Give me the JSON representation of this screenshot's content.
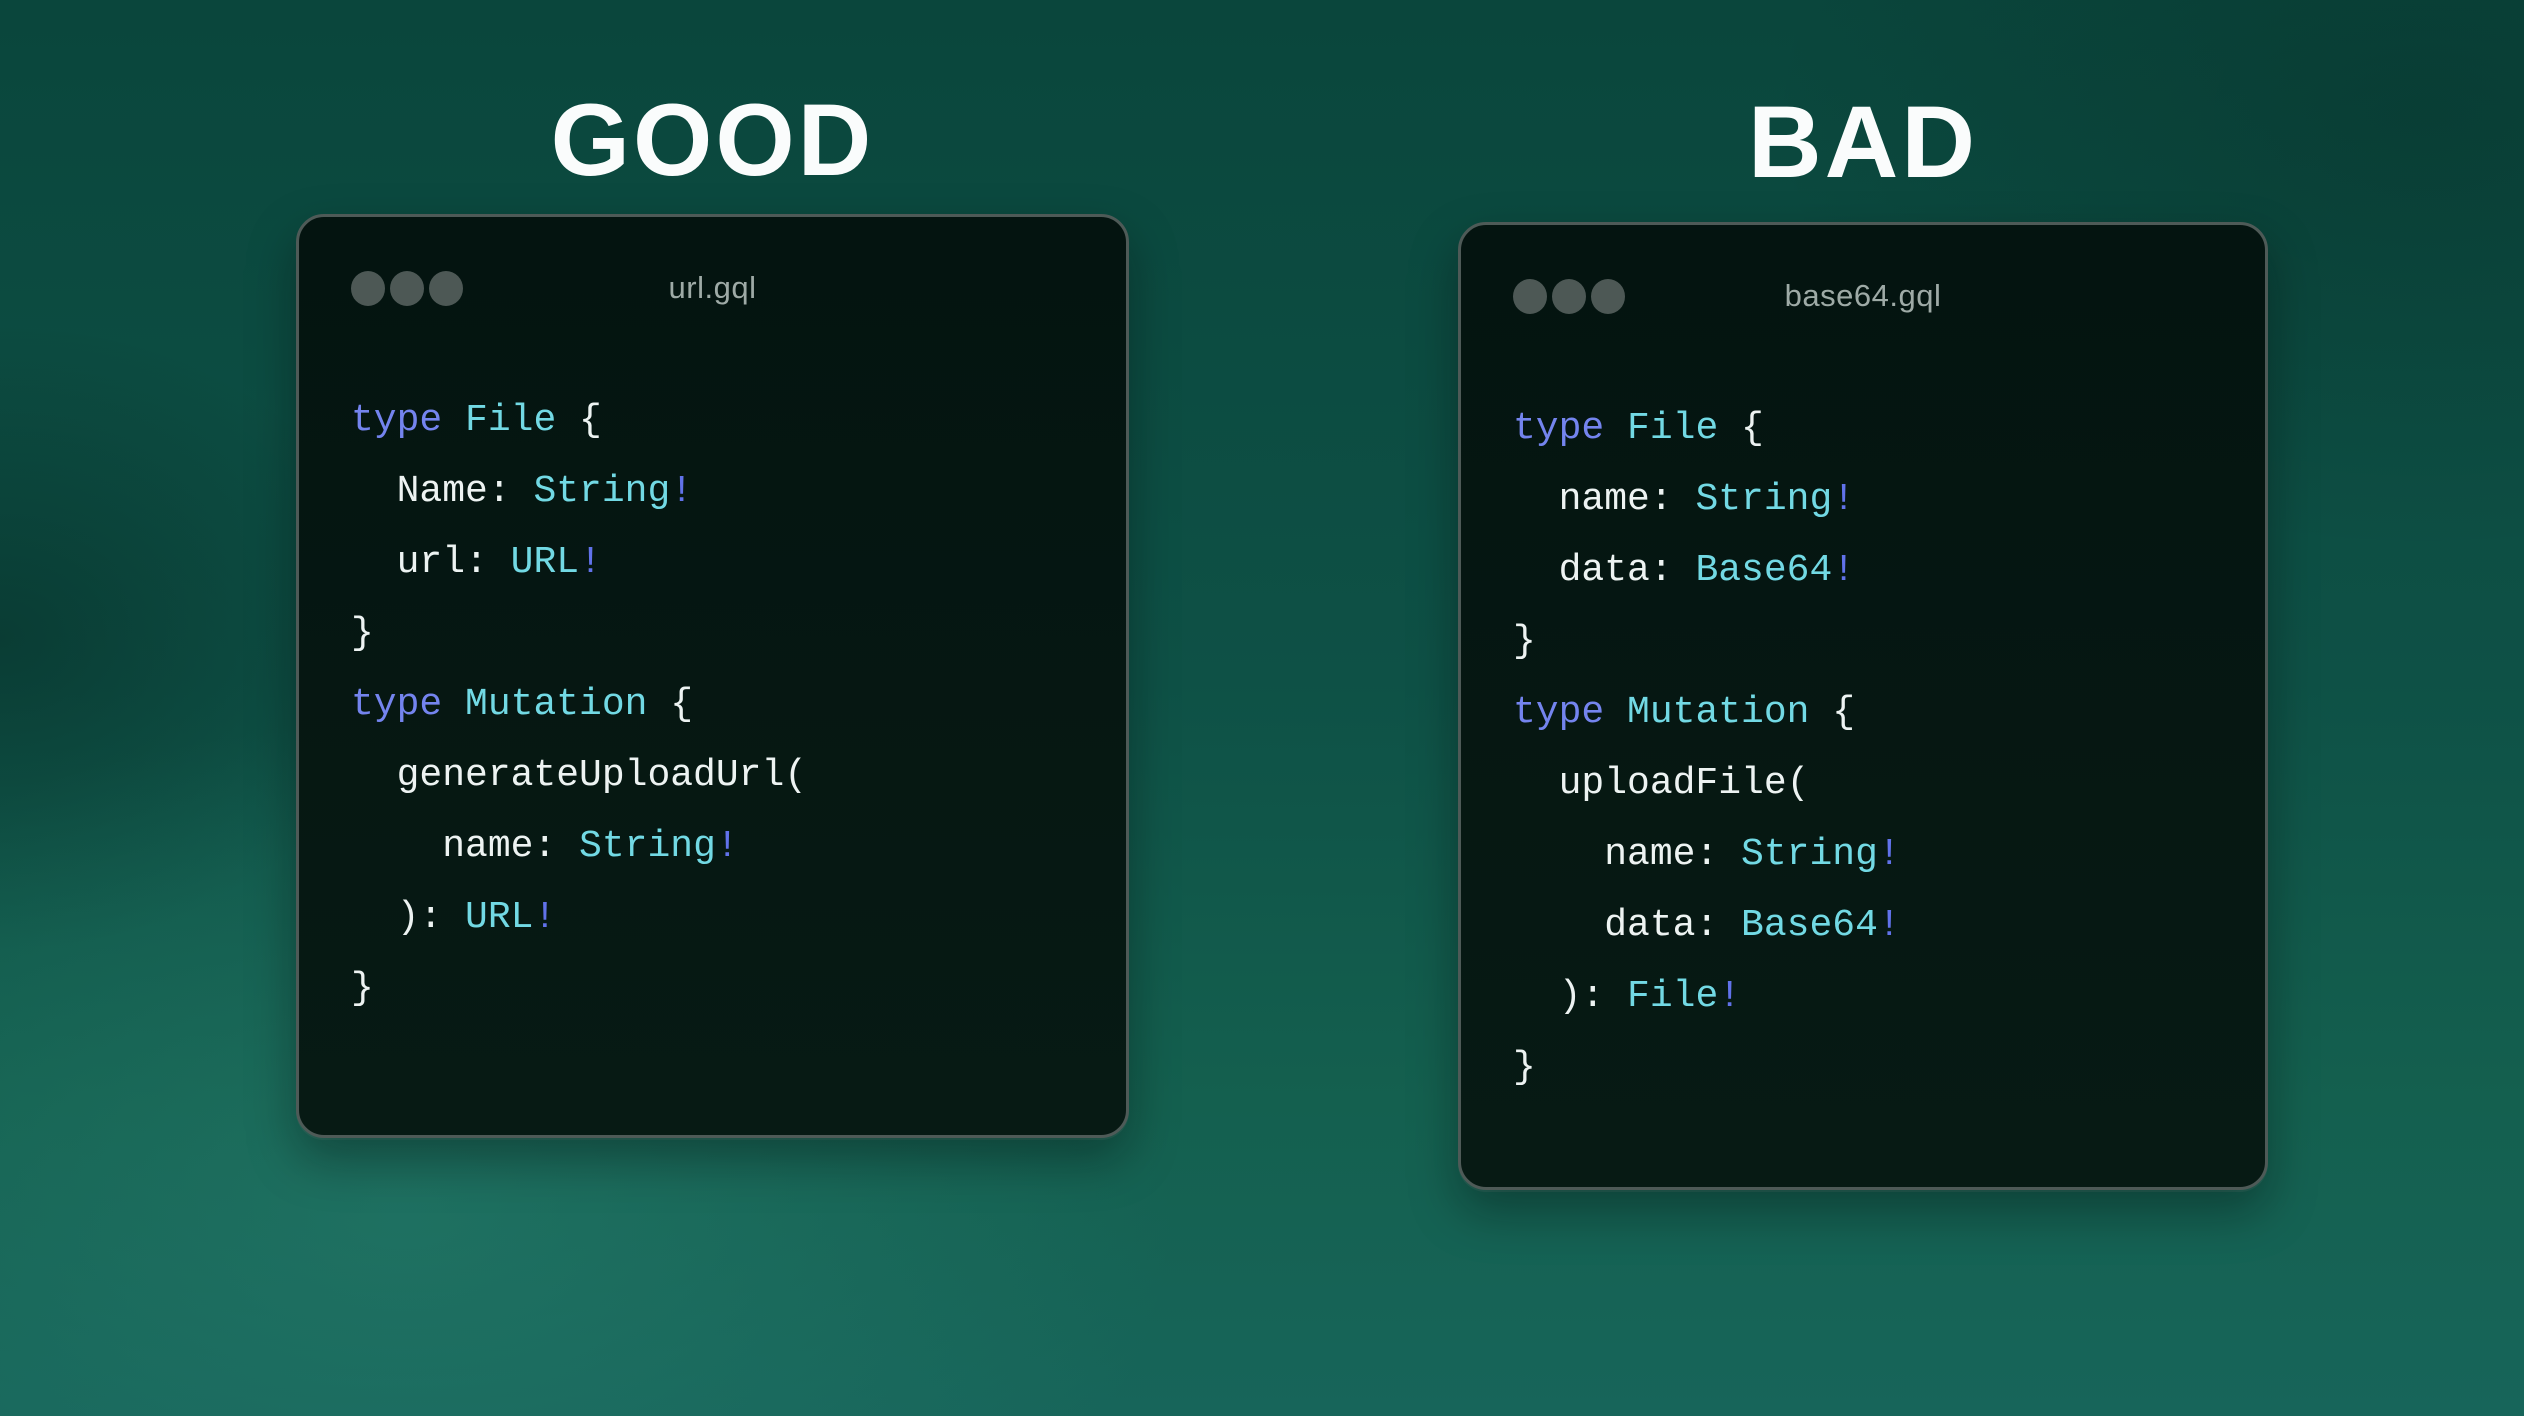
{
  "page": {
    "background_top": "#0a463c",
    "background_bottom": "#17655a"
  },
  "colors": {
    "keyword": "#7484ee",
    "typename": "#72d9e4",
    "plain": "#edf3f2",
    "bang": "#6172ea",
    "window_bg_top": "#041410",
    "window_bg_bottom": "#071a14",
    "window_border": "#4e5a57",
    "title_text": "#9eaaa6",
    "dot": "#4d5855",
    "heading_text": "#fafcfc"
  },
  "panels": [
    {
      "id": "good",
      "heading": "GOOD",
      "filename": "url.gql",
      "code": [
        [
          [
            "kw",
            "type"
          ],
          [
            "pl",
            " "
          ],
          [
            "ty",
            "File"
          ],
          [
            "pl",
            " {"
          ]
        ],
        [
          [
            "pl",
            "  Name: "
          ],
          [
            "ty",
            "String"
          ],
          [
            "bang",
            "!"
          ]
        ],
        [
          [
            "pl",
            "  url: "
          ],
          [
            "ty",
            "URL"
          ],
          [
            "bang",
            "!"
          ]
        ],
        [
          [
            "pl",
            "}"
          ]
        ],
        [
          [
            "kw",
            "type"
          ],
          [
            "pl",
            " "
          ],
          [
            "ty",
            "Mutation"
          ],
          [
            "pl",
            " {"
          ]
        ],
        [
          [
            "pl",
            "  generateUploadUrl("
          ]
        ],
        [
          [
            "pl",
            "    name: "
          ],
          [
            "ty",
            "String"
          ],
          [
            "bang",
            "!"
          ]
        ],
        [
          [
            "pl",
            "  ): "
          ],
          [
            "ty",
            "URL"
          ],
          [
            "bang",
            "!"
          ]
        ],
        [
          [
            "pl",
            "}"
          ]
        ]
      ]
    },
    {
      "id": "bad",
      "heading": "BAD",
      "filename": "base64.gql",
      "code": [
        [
          [
            "kw",
            "type"
          ],
          [
            "pl",
            " "
          ],
          [
            "ty",
            "File"
          ],
          [
            "pl",
            " {"
          ]
        ],
        [
          [
            "pl",
            "  name: "
          ],
          [
            "ty",
            "String"
          ],
          [
            "bang",
            "!"
          ]
        ],
        [
          [
            "pl",
            "  data: "
          ],
          [
            "ty",
            "Base64"
          ],
          [
            "bang",
            "!"
          ]
        ],
        [
          [
            "pl",
            "}"
          ]
        ],
        [
          [
            "kw",
            "type"
          ],
          [
            "pl",
            " "
          ],
          [
            "ty",
            "Mutation"
          ],
          [
            "pl",
            " {"
          ]
        ],
        [
          [
            "pl",
            "  uploadFile("
          ]
        ],
        [
          [
            "pl",
            "    name: "
          ],
          [
            "ty",
            "String"
          ],
          [
            "bang",
            "!"
          ]
        ],
        [
          [
            "pl",
            "    data: "
          ],
          [
            "ty",
            "Base64"
          ],
          [
            "bang",
            "!"
          ]
        ],
        [
          [
            "pl",
            "  ): "
          ],
          [
            "ty",
            "File"
          ],
          [
            "bang",
            "!"
          ]
        ],
        [
          [
            "pl",
            "}"
          ]
        ]
      ]
    }
  ]
}
